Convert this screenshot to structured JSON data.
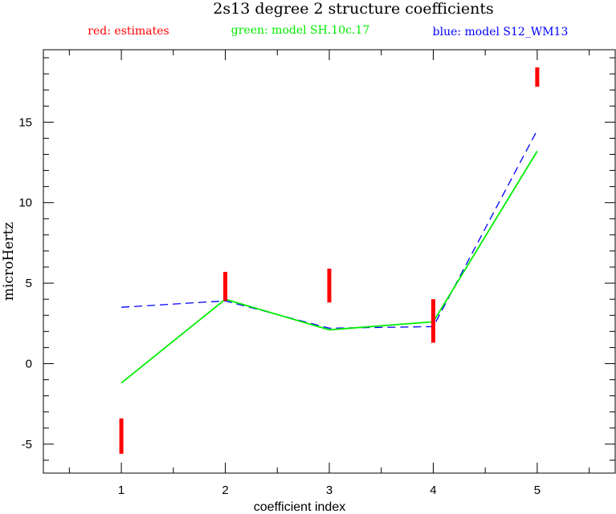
{
  "chart_data": {
    "type": "line",
    "title": "2s13 degree 2 structure coefficients",
    "legend": [
      {
        "label": "red: estimates",
        "color": "#ff0000"
      },
      {
        "label": "green: model SH.10c.17",
        "color": "#00ee00"
      },
      {
        "label": "blue: model S12_WM13",
        "color": "#0000ff"
      }
    ],
    "xlabel": "coefficient index",
    "ylabel": "microHertz",
    "xlim": [
      0.25,
      5.75
    ],
    "ylim": [
      -6.8,
      19.5
    ],
    "xticks": [
      1,
      2,
      3,
      4,
      5
    ],
    "xtick_labels": [
      "1",
      "2",
      "3",
      "4",
      "5"
    ],
    "yticks": [
      -5,
      0,
      5,
      10,
      15
    ],
    "ytick_labels": [
      "-5",
      "0",
      "5",
      "10",
      "15"
    ],
    "grid": false,
    "estimates": [
      {
        "x": 1,
        "low": -5.6,
        "high": -3.4
      },
      {
        "x": 2,
        "low": 3.9,
        "high": 5.7
      },
      {
        "x": 3,
        "low": 3.8,
        "high": 5.9
      },
      {
        "x": 4,
        "low": 1.3,
        "high": 4.0
      },
      {
        "x": 5,
        "low": 17.2,
        "high": 18.4
      }
    ],
    "series": [
      {
        "name": "SH.10c.17",
        "color": "#00ee00",
        "style": "solid",
        "x": [
          1,
          2,
          3,
          4,
          5
        ],
        "values": [
          -1.2,
          4.0,
          2.1,
          2.6,
          13.2
        ]
      },
      {
        "name": "S12_WM13",
        "color": "#0000ff",
        "style": "dashed",
        "x": [
          1,
          2,
          3,
          4,
          5
        ],
        "values": [
          3.5,
          3.9,
          2.2,
          2.3,
          14.5
        ]
      }
    ]
  }
}
